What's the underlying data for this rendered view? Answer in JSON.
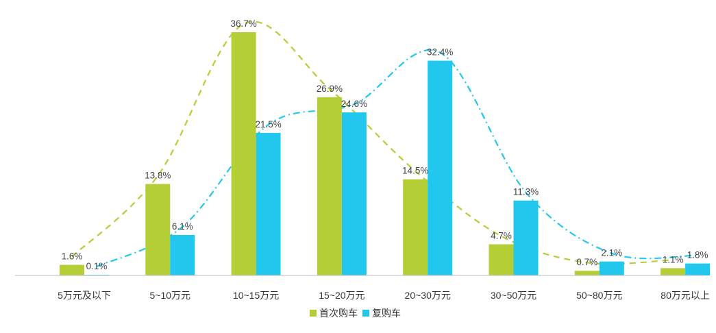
{
  "chart_data": {
    "type": "bar",
    "categories": [
      "5万元及以下",
      "5~10万元",
      "10~15万元",
      "15~20万元",
      "20~30万元",
      "30~50万元",
      "50~80万元",
      "80万元以上"
    ],
    "series": [
      {
        "name": "首次购车",
        "values": [
          1.6,
          13.8,
          36.7,
          26.9,
          14.5,
          4.7,
          0.7,
          1.1
        ],
        "labels": [
          "1.6%",
          "13.8%",
          "36.7%",
          "26.9%",
          "14.5%",
          "4.7%",
          "0.7%",
          "1.1%"
        ],
        "color": "#b3cf35",
        "trend_line": "dashed"
      },
      {
        "name": "复购车",
        "values": [
          0.1,
          6.1,
          21.5,
          24.6,
          32.4,
          11.3,
          2.1,
          1.8
        ],
        "labels": [
          "0.1%",
          "6.1%",
          "21.5%",
          "24.6%",
          "32.4%",
          "11.3%",
          "2.1%",
          "1.8%"
        ],
        "color": "#22c7ee",
        "trend_line": "dash-dot"
      }
    ],
    "title": "",
    "xlabel": "",
    "ylabel": "",
    "ylim": [
      0,
      40
    ],
    "grid": false,
    "legend_position": "bottom-center"
  }
}
